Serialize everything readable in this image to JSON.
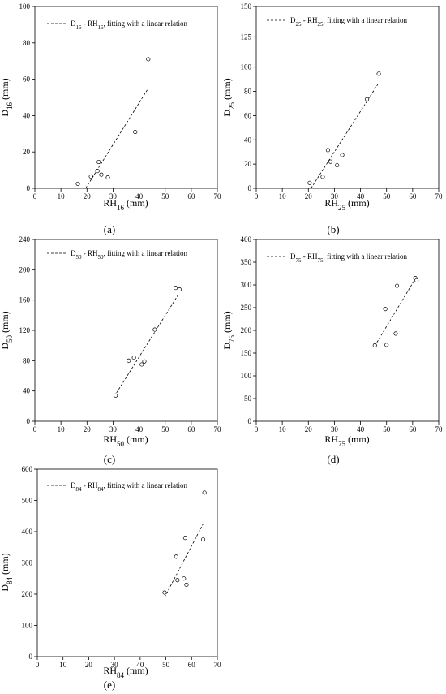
{
  "figure": {
    "panels": [
      {
        "panel_label": "(a)"
      },
      {
        "panel_label": "(b)"
      },
      {
        "panel_label": "(c)"
      },
      {
        "panel_label": "(d)"
      },
      {
        "panel_label": "(e)"
      }
    ]
  },
  "chart_data": [
    {
      "type": "scatter",
      "ylabel": "D16 (mm)",
      "xlabel": "RH16 (mm)",
      "label_subscript": "16",
      "legend": "D16 - RH16, fitting with a linear relation",
      "xlim": [
        0,
        70
      ],
      "xticks": [
        0,
        10,
        20,
        30,
        40,
        50,
        60,
        70
      ],
      "ylim": [
        0,
        100
      ],
      "yticks": [
        0,
        20,
        40,
        60,
        80,
        100
      ],
      "series": [
        {
          "points": [
            [
              16.5,
              2.5
            ],
            [
              21.5,
              6.5
            ],
            [
              24,
              9.5
            ],
            [
              24.5,
              14.5
            ],
            [
              25.5,
              7.5
            ],
            [
              28,
              6
            ],
            [
              38.5,
              31
            ],
            [
              43.5,
              71
            ]
          ]
        }
      ],
      "fit_line": {
        "x": [
          19.5,
          43.5
        ],
        "y": [
          0,
          55
        ]
      }
    },
    {
      "type": "scatter",
      "ylabel": "D25 (mm)",
      "xlabel": "RH25 (mm)",
      "label_subscript": "25",
      "legend": "D25 - RH25, fitting with a linear relation",
      "xlim": [
        0,
        70
      ],
      "xticks": [
        0,
        10,
        20,
        30,
        40,
        50,
        60,
        70
      ],
      "ylim": [
        0,
        150
      ],
      "yticks": [
        0,
        20,
        40,
        60,
        80,
        100,
        125,
        150
      ],
      "series": [
        {
          "points": [
            [
              20.5,
              4.5
            ],
            [
              25.5,
              9.5
            ],
            [
              27.5,
              31.5
            ],
            [
              28.5,
              22
            ],
            [
              31,
              19
            ],
            [
              33,
              27.5
            ],
            [
              42.5,
              73.5
            ],
            [
              47,
              94.5
            ]
          ]
        }
      ],
      "fit_line": {
        "x": [
          21,
          47
        ],
        "y": [
          0,
          87
        ]
      }
    },
    {
      "type": "scatter",
      "ylabel": "D50 (mm)",
      "xlabel": "RH50 (mm)",
      "label_subscript": "50",
      "legend": "D50 - RH50, fitting with a linear relation",
      "xlim": [
        0,
        70
      ],
      "xticks": [
        0,
        10,
        20,
        30,
        40,
        50,
        60,
        70
      ],
      "ylim": [
        0,
        240
      ],
      "yticks": [
        0,
        40,
        80,
        120,
        160,
        200,
        240
      ],
      "series": [
        {
          "points": [
            [
              31,
              34
            ],
            [
              36,
              80
            ],
            [
              38,
              84
            ],
            [
              41,
              75
            ],
            [
              42,
              79
            ],
            [
              46,
              121
            ],
            [
              54,
              176
            ],
            [
              55.5,
              174
            ]
          ]
        }
      ],
      "fit_line": {
        "x": [
          30.5,
          55
        ],
        "y": [
          33,
          167
        ]
      }
    },
    {
      "type": "scatter",
      "ylabel": "D75 (mm)",
      "xlabel": "RH75 (mm)",
      "label_subscript": "75",
      "legend": "D75 - RH75, fitting with a linear relation",
      "xlim": [
        0,
        70
      ],
      "xticks": [
        0,
        10,
        20,
        30,
        40,
        50,
        60,
        70
      ],
      "ylim": [
        0,
        400
      ],
      "yticks": [
        0,
        50,
        100,
        150,
        200,
        250,
        300,
        350,
        400
      ],
      "series": [
        {
          "points": [
            [
              45.5,
              167
            ],
            [
              49.5,
              247
            ],
            [
              50,
              168
            ],
            [
              53.5,
              193
            ],
            [
              54,
              298
            ],
            [
              61,
              315
            ],
            [
              61.5,
              310
            ]
          ]
        }
      ],
      "fit_line": {
        "x": [
          45.5,
          61.5
        ],
        "y": [
          166,
          318
        ]
      }
    },
    {
      "type": "scatter",
      "ylabel": "D84 (mm)",
      "xlabel": "RH84 (mm)",
      "label_subscript": "84",
      "legend": "D84 - RH84, fitting with a linear relation",
      "xlim": [
        0,
        70
      ],
      "xticks": [
        0,
        10,
        20,
        30,
        40,
        50,
        60,
        70
      ],
      "ylim": [
        0,
        600
      ],
      "yticks": [
        0,
        100,
        200,
        300,
        400,
        500,
        600
      ],
      "series": [
        {
          "points": [
            [
              49.5,
              205
            ],
            [
              54,
              320
            ],
            [
              54.5,
              245
            ],
            [
              57,
              250
            ],
            [
              57.5,
              380
            ],
            [
              58,
              230
            ],
            [
              64.5,
              375
            ],
            [
              65,
              525
            ]
          ]
        }
      ],
      "fit_line": {
        "x": [
          49.5,
          64.5
        ],
        "y": [
          190,
          425
        ]
      }
    }
  ]
}
